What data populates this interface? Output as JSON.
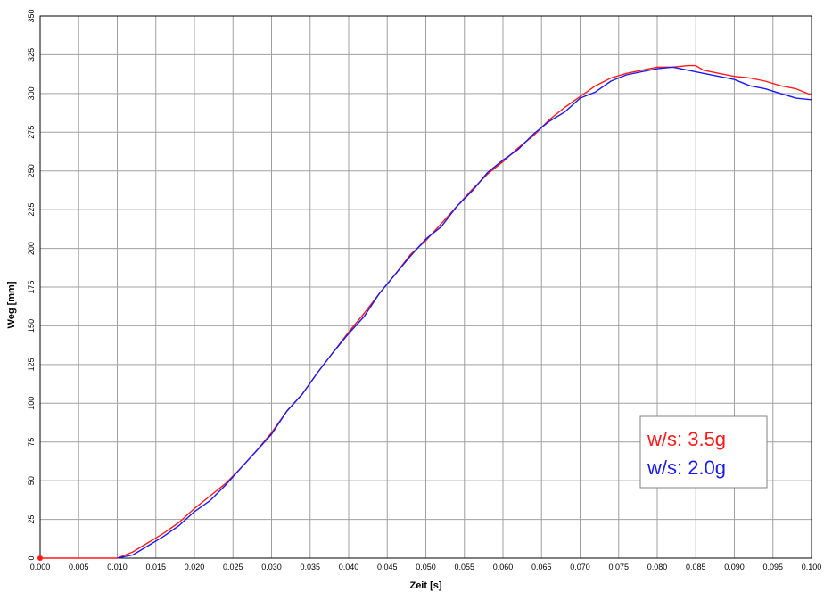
{
  "chart_data": {
    "type": "line",
    "xlabel": "Zeit [s]",
    "ylabel": "Weg [mm]",
    "xlim": [
      0,
      0.1
    ],
    "ylim": [
      0,
      350
    ],
    "x_ticks": [
      "0.000",
      "0.005",
      "0.010",
      "0.015",
      "0.020",
      "0.025",
      "0.030",
      "0.035",
      "0.040",
      "0.045",
      "0.050",
      "0.055",
      "0.060",
      "0.065",
      "0.070",
      "0.075",
      "0.080",
      "0.085",
      "0.090",
      "0.095",
      "0.100"
    ],
    "y_ticks": [
      "0",
      "25",
      "50",
      "75",
      "100",
      "125",
      "150",
      "175",
      "200",
      "225",
      "250",
      "275",
      "300",
      "325",
      "350"
    ],
    "grid": true,
    "legend_placement": "bottom-right",
    "series": [
      {
        "name": "w/s: 3.5g",
        "color": "#ff1a1a",
        "x": [
          0.0,
          0.01,
          0.012,
          0.014,
          0.016,
          0.018,
          0.02,
          0.022,
          0.024,
          0.026,
          0.028,
          0.03,
          0.032,
          0.034,
          0.036,
          0.038,
          0.04,
          0.042,
          0.044,
          0.046,
          0.048,
          0.05,
          0.052,
          0.054,
          0.056,
          0.058,
          0.06,
          0.062,
          0.064,
          0.066,
          0.068,
          0.07,
          0.072,
          0.074,
          0.076,
          0.078,
          0.08,
          0.082,
          0.084,
          0.085,
          0.086,
          0.088,
          0.09,
          0.092,
          0.094,
          0.096,
          0.098,
          0.1
        ],
        "y": [
          0,
          0,
          4,
          10,
          16,
          23,
          32,
          40,
          48,
          58,
          69,
          81,
          95,
          106,
          120,
          133,
          146,
          158,
          171,
          183,
          196,
          205,
          216,
          227,
          238,
          248,
          256,
          265,
          273,
          283,
          291,
          298,
          305,
          310,
          313,
          315,
          317,
          317,
          318,
          318,
          315,
          313,
          311,
          310,
          308,
          305,
          303,
          299
        ]
      },
      {
        "name": "w/s: 2.0g",
        "color": "#1a1aee",
        "x": [
          0.01,
          0.012,
          0.014,
          0.016,
          0.018,
          0.02,
          0.022,
          0.024,
          0.026,
          0.028,
          0.03,
          0.032,
          0.034,
          0.036,
          0.038,
          0.04,
          0.042,
          0.044,
          0.046,
          0.048,
          0.05,
          0.052,
          0.054,
          0.056,
          0.058,
          0.06,
          0.062,
          0.064,
          0.066,
          0.068,
          0.07,
          0.072,
          0.074,
          0.076,
          0.078,
          0.08,
          0.082,
          0.084,
          0.086,
          0.088,
          0.09,
          0.092,
          0.094,
          0.096,
          0.098,
          0.1
        ],
        "y": [
          0,
          2,
          8,
          14,
          21,
          30,
          37,
          47,
          58,
          69,
          80,
          95,
          106,
          120,
          133,
          145,
          156,
          171,
          183,
          195,
          206,
          214,
          227,
          237,
          249,
          257,
          264,
          274,
          282,
          288,
          297,
          301,
          308,
          312,
          314,
          316,
          317,
          315,
          313,
          311,
          309,
          305,
          303,
          300,
          297,
          296
        ]
      }
    ]
  }
}
